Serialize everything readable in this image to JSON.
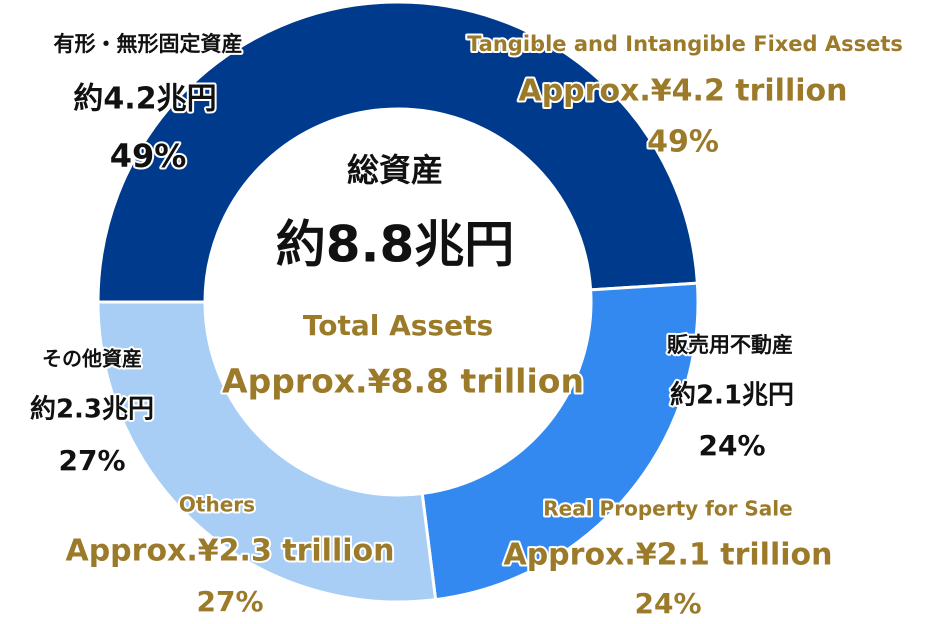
{
  "chart_data": {
    "type": "pie",
    "donut": true,
    "title": "総資産",
    "total_label": "約8.8兆円",
    "title_en": "Total Assets",
    "total_label_en": "Approx.¥8.8 trillion",
    "categories": [
      "有形・無形固定資産",
      "販売用不動産",
      "その他資産"
    ],
    "categories_en": [
      "Tangible and Intangible Fixed Assets",
      "Real Property for Sale",
      "Others"
    ],
    "values": [
      49,
      24,
      27
    ],
    "value_labels": [
      "49%",
      "24%",
      "27%"
    ],
    "amount_labels": [
      "約4.2兆円",
      "約2.1兆円",
      "約2.3兆円"
    ],
    "amount_labels_en": [
      "Approx.¥4.2 trillion",
      "Approx.¥2.1 trillion",
      "Approx.¥2.3 trillion"
    ],
    "colors": [
      "#003a8c",
      "#3389f0",
      "#a8cef5"
    ]
  }
}
